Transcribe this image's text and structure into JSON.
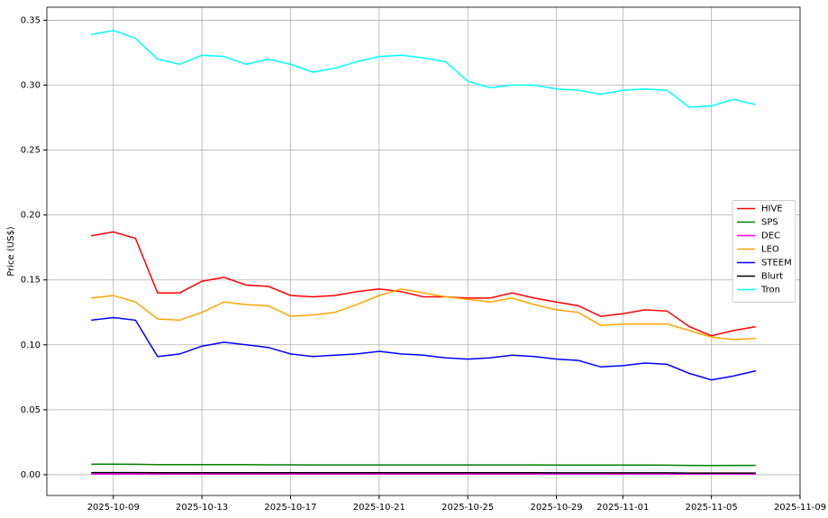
{
  "chart_data": {
    "type": "line",
    "y_label": "Price (US$)",
    "x": [
      "2025-10-08",
      "2025-10-09",
      "2025-10-10",
      "2025-10-11",
      "2025-10-12",
      "2025-10-13",
      "2025-10-14",
      "2025-10-15",
      "2025-10-16",
      "2025-10-17",
      "2025-10-18",
      "2025-10-19",
      "2025-10-20",
      "2025-10-21",
      "2025-10-22",
      "2025-10-23",
      "2025-10-24",
      "2025-10-25",
      "2025-10-26",
      "2025-10-27",
      "2025-10-28",
      "2025-10-29",
      "2025-10-30",
      "2025-10-31",
      "2025-11-01",
      "2025-11-02",
      "2025-11-03",
      "2025-11-04",
      "2025-11-05",
      "2025-11-06",
      "2025-11-07"
    ],
    "series": [
      {
        "name": "HIVE",
        "color": "#ff0000",
        "values": [
          0.184,
          0.187,
          0.182,
          0.14,
          0.14,
          0.149,
          0.152,
          0.146,
          0.145,
          0.138,
          0.137,
          0.138,
          0.141,
          0.143,
          0.141,
          0.137,
          0.137,
          0.136,
          0.136,
          0.14,
          0.136,
          0.133,
          0.13,
          0.122,
          0.124,
          0.127,
          0.126,
          0.114,
          0.107,
          0.111,
          0.114
        ]
      },
      {
        "name": "SPS",
        "color": "#008000",
        "values": [
          0.0081,
          0.0081,
          0.008,
          0.0077,
          0.0077,
          0.0078,
          0.0077,
          0.0077,
          0.0076,
          0.0076,
          0.0075,
          0.0075,
          0.0075,
          0.0075,
          0.0075,
          0.0075,
          0.0075,
          0.0075,
          0.0075,
          0.0075,
          0.0075,
          0.0074,
          0.0074,
          0.0074,
          0.0074,
          0.0074,
          0.0073,
          0.0072,
          0.0071,
          0.0072,
          0.0072
        ]
      },
      {
        "name": "DEC",
        "color": "#ff00ff",
        "values": [
          0.0006,
          0.0006,
          0.0006,
          0.0006,
          0.0006,
          0.0006,
          0.0006,
          0.0006,
          0.0006,
          0.0006,
          0.0006,
          0.0006,
          0.0006,
          0.0006,
          0.0006,
          0.0006,
          0.0006,
          0.0006,
          0.0006,
          0.0006,
          0.0006,
          0.0006,
          0.0006,
          0.0006,
          0.0006,
          0.0006,
          0.0006,
          0.0006,
          0.0006,
          0.0006,
          0.0006
        ]
      },
      {
        "name": "LEO",
        "color": "#ffa500",
        "values": [
          0.136,
          0.138,
          0.133,
          0.12,
          0.119,
          0.125,
          0.133,
          0.131,
          0.13,
          0.122,
          0.123,
          0.125,
          0.131,
          0.138,
          0.143,
          0.14,
          0.137,
          0.135,
          0.133,
          0.136,
          0.131,
          0.127,
          0.125,
          0.115,
          0.116,
          0.116,
          0.116,
          0.111,
          0.106,
          0.104,
          0.105
        ]
      },
      {
        "name": "STEEM",
        "color": "#0000ff",
        "values": [
          0.119,
          0.121,
          0.119,
          0.091,
          0.093,
          0.099,
          0.102,
          0.1,
          0.098,
          0.093,
          0.091,
          0.092,
          0.093,
          0.095,
          0.093,
          0.092,
          0.09,
          0.089,
          0.09,
          0.092,
          0.091,
          0.089,
          0.088,
          0.083,
          0.084,
          0.086,
          0.085,
          0.078,
          0.073,
          0.076,
          0.08
        ]
      },
      {
        "name": "Blurt",
        "color": "#000000",
        "values": [
          0.0016,
          0.0016,
          0.0016,
          0.0015,
          0.0015,
          0.0015,
          0.0015,
          0.0015,
          0.0015,
          0.0015,
          0.0015,
          0.0015,
          0.0015,
          0.0015,
          0.0015,
          0.0015,
          0.0015,
          0.0015,
          0.0015,
          0.0015,
          0.0015,
          0.0014,
          0.0014,
          0.0014,
          0.0014,
          0.0014,
          0.0014,
          0.0013,
          0.0013,
          0.0013,
          0.0013
        ]
      },
      {
        "name": "Tron",
        "color": "#00ffff",
        "values": [
          0.339,
          0.342,
          0.336,
          0.32,
          0.316,
          0.323,
          0.322,
          0.316,
          0.32,
          0.316,
          0.31,
          0.313,
          0.318,
          0.322,
          0.323,
          0.321,
          0.318,
          0.303,
          0.298,
          0.3,
          0.3,
          0.297,
          0.296,
          0.293,
          0.296,
          0.297,
          0.296,
          0.283,
          0.284,
          0.289,
          0.285
        ]
      }
    ],
    "xlim": [
      "2025-10-06",
      "2025-11-09"
    ],
    "xticks": [
      "2025-10-09",
      "2025-10-13",
      "2025-10-17",
      "2025-10-21",
      "2025-10-25",
      "2025-10-29",
      "2025-11-01",
      "2025-11-05",
      "2025-11-09"
    ],
    "ylim": [
      -0.016,
      0.36
    ],
    "yticks": [
      {
        "value": 0,
        "label": "0.00"
      },
      0.05,
      {
        "value": 0.1,
        "label": "0.10"
      },
      0.15,
      {
        "value": 0.2,
        "label": "0.20"
      },
      0.25,
      {
        "value": 0.3,
        "label": "0.30"
      },
      0.35
    ],
    "grid": true,
    "legend": "center right"
  }
}
